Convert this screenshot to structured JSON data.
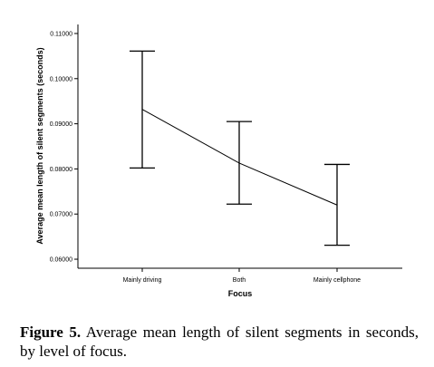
{
  "chart_data": {
    "type": "line",
    "error_bars": true,
    "categories": [
      "Mainly driving",
      "Both",
      "Mainly cellphone"
    ],
    "values": [
      0.0932,
      0.0813,
      0.072
    ],
    "error_low": [
      0.0802,
      0.0722,
      0.0631
    ],
    "error_high": [
      0.1061,
      0.0905,
      0.081
    ],
    "xlabel": "Focus",
    "ylabel": "Average mean length of silent segments (seconds)",
    "ylim": [
      0.058,
      0.112
    ],
    "yticks": [
      0.06,
      0.07,
      0.08,
      0.09,
      0.1,
      0.11
    ],
    "ytick_labels": [
      "0.06000",
      "0.07000",
      "0.08000",
      "0.09000",
      "0.10000",
      "0.11000"
    ],
    "grid": false,
    "line_color": "#000000"
  },
  "caption": {
    "label": "Figure 5.",
    "text": " Average mean length of silent segments in seconds, by level of focus."
  }
}
